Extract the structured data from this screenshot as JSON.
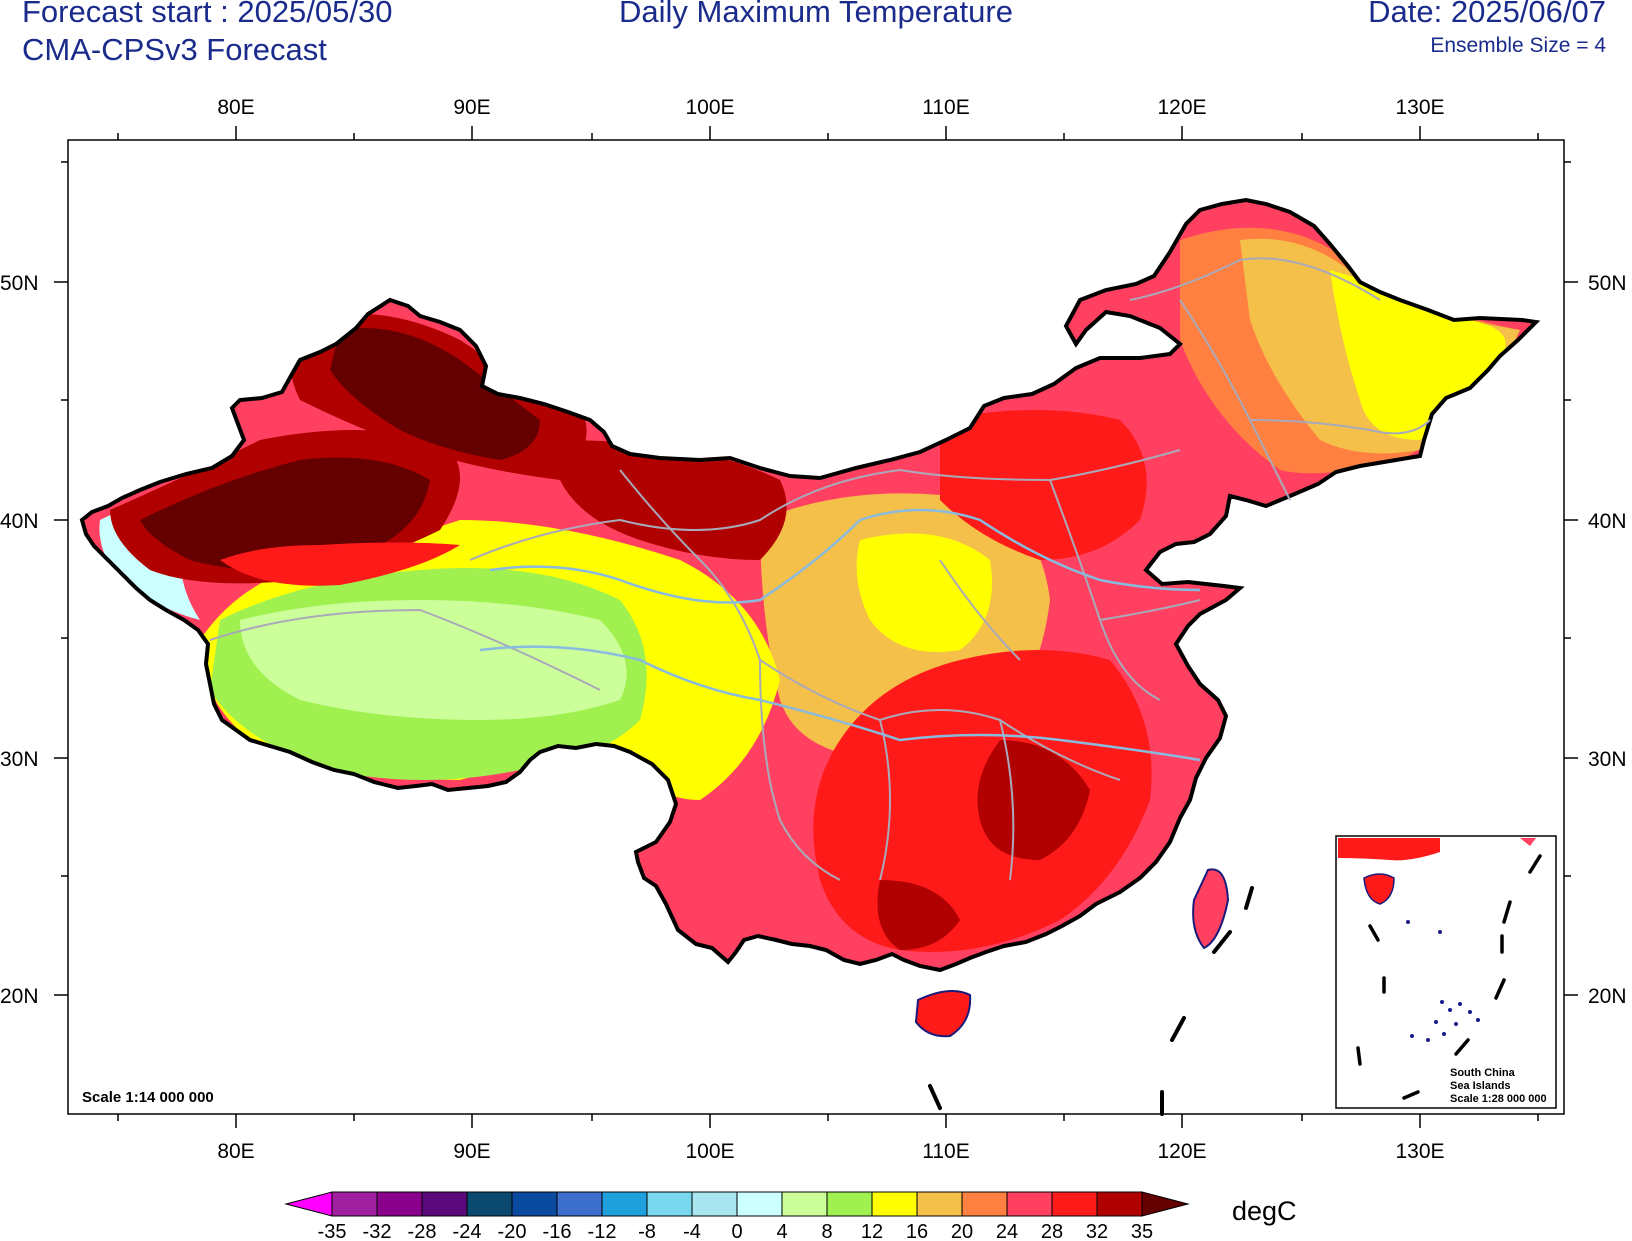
{
  "header": {
    "forecast_start": "Forecast start : 2025/05/30",
    "model": "CMA-CPSv3 Forecast",
    "title": "Daily Maximum Temperature",
    "date": "Date: 2025/06/07",
    "ensemble": "Ensemble Size = 4"
  },
  "map": {
    "lon_ticks": [
      "80E",
      "90E",
      "100E",
      "110E",
      "120E",
      "130E"
    ],
    "lat_ticks": [
      "50N",
      "40N",
      "30N",
      "20N"
    ],
    "scale": "Scale 1:14 000 000",
    "inset": {
      "line1": "South China",
      "line2": "Sea Islands",
      "line3": "Scale 1:28 000 000"
    }
  },
  "colorbar": {
    "unit": "degC",
    "labels": [
      "-35",
      "-32",
      "-28",
      "-24",
      "-20",
      "-16",
      "-12",
      "-8",
      "-4",
      "0",
      "4",
      "8",
      "12",
      "16",
      "20",
      "24",
      "28",
      "32",
      "35"
    ],
    "colors": [
      "#ff00ff",
      "#a020a0",
      "#8b008b",
      "#5a0a7a",
      "#0a4a6e",
      "#0a4aa0",
      "#3c6ecc",
      "#1ea0dc",
      "#78d8f0",
      "#aae6f0",
      "#ccffff",
      "#ccff99",
      "#a0f050",
      "#ffff00",
      "#f5c04a",
      "#ff8040",
      "#ff4060",
      "#ff1a1a",
      "#b00000",
      "#640000"
    ]
  }
}
